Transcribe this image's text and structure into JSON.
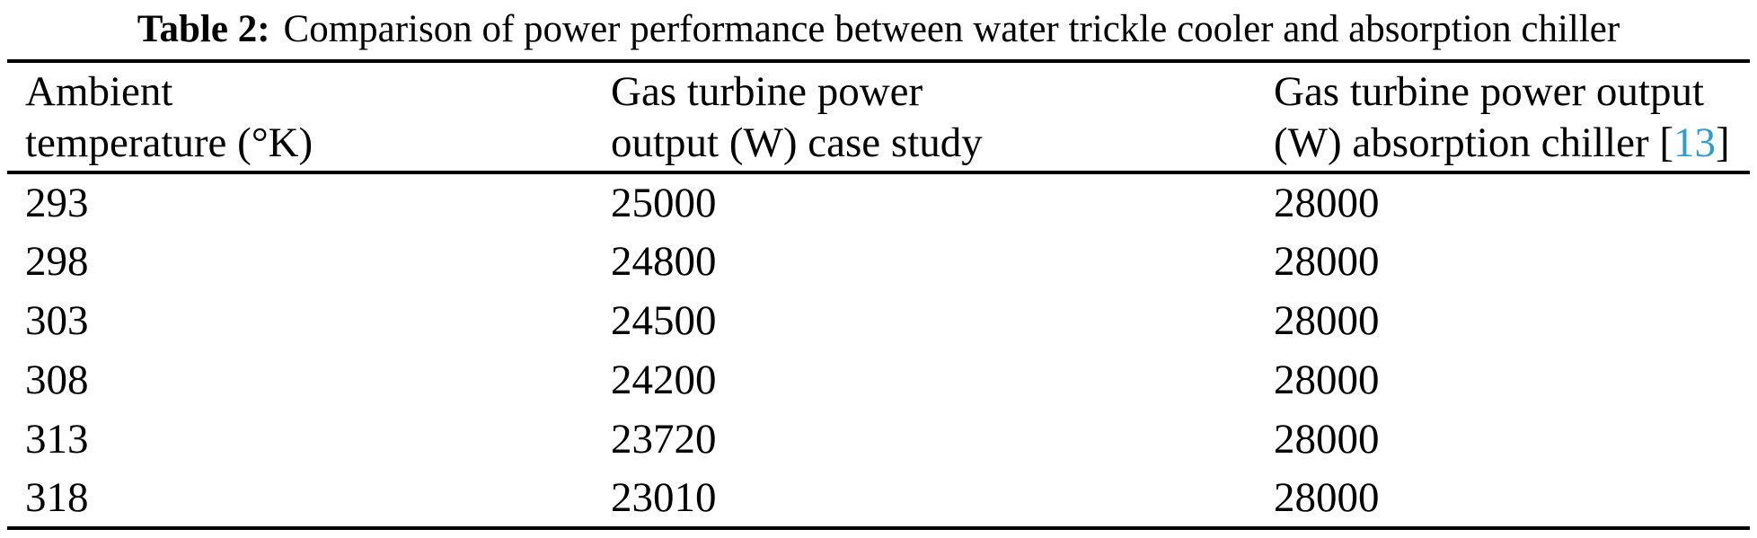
{
  "caption": {
    "label": "Table 2:",
    "text": "Comparison of power performance between water trickle cooler and absorption chiller"
  },
  "table": {
    "columns": [
      {
        "line1": "Ambient",
        "line2": "temperature (°K)"
      },
      {
        "line1": "Gas turbine power",
        "line2": "output (W) case study"
      },
      {
        "line1": "Gas turbine power output",
        "line2_prefix": "(W) absorption chiller [",
        "citation": "13",
        "line2_suffix": "]"
      }
    ],
    "rows": [
      [
        "293",
        "25000",
        "28000"
      ],
      [
        "298",
        "24800",
        "28000"
      ],
      [
        "303",
        "24500",
        "28000"
      ],
      [
        "308",
        "24200",
        "28000"
      ],
      [
        "313",
        "23720",
        "28000"
      ],
      [
        "318",
        "23010",
        "28000"
      ]
    ]
  },
  "chart_data": {
    "type": "table",
    "title": "Table 2: Comparison of power performance between water trickle cooler and absorption chiller",
    "categories": [
      "Ambient temperature (°K)",
      "Gas turbine power output (W) case study",
      "Gas turbine power output (W) absorption chiller [13]"
    ],
    "series": [
      {
        "name": "Ambient temperature (°K)",
        "values": [
          293,
          298,
          303,
          308,
          313,
          318
        ]
      },
      {
        "name": "Gas turbine power output (W) case study",
        "values": [
          25000,
          24800,
          24500,
          24200,
          23720,
          23010
        ]
      },
      {
        "name": "Gas turbine power output (W) absorption chiller [13]",
        "values": [
          28000,
          28000,
          28000,
          28000,
          28000,
          28000
        ]
      }
    ]
  },
  "colors": {
    "text": "#000000",
    "background": "#ffffff",
    "citation_link": "#2B9CD6",
    "rule": "#000000"
  }
}
